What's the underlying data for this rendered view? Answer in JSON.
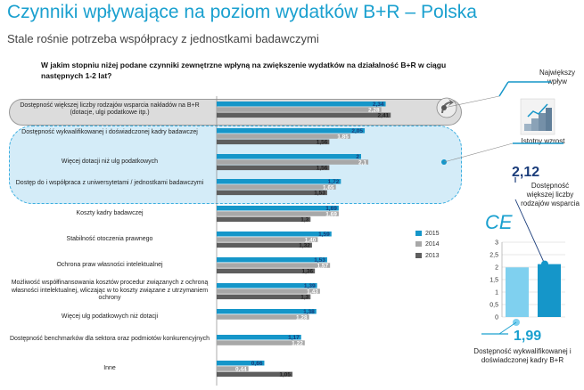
{
  "title": "Czynniki wpływające na poziom wydatków B+R – Polska",
  "subtitle": "Stale rośnie potrzeba współpracy z jednostkami badawczymi",
  "question": "W jakim stopniu niżej podane czynniki zewnętrzne wpłyną na zwiększenie wydatków na działalność B+R w ciągu następnych 1-2 lat?",
  "callouts": {
    "najwiekszy": "Największy wpływ",
    "istotny": "Istotny wzrost"
  },
  "ce_panel": {
    "label": "CE",
    "value_top": "2,12",
    "caption_top": "Dostępność większej liczby rodzajów wsparcia",
    "value_bottom": "1,99",
    "caption_bottom": "Dostępność wykwalifikowanej i doświadczonej kadry B+R"
  },
  "colors": {
    "2015": "#1596c9",
    "2014": "#a8a8a8",
    "2013": "#5e5e5e",
    "accent": "#1aa0cf"
  },
  "chart_data": [
    {
      "type": "bar",
      "orientation": "horizontal",
      "title": "W jakim stopniu niżej podane czynniki zewnętrzne wpłyną na zwiększenie wydatków na działalność B+R w ciągu następnych 1-2 lat?",
      "legend": [
        "2015",
        "2014",
        "2013"
      ],
      "legend_position": "right",
      "categories": [
        "Dostępność większej liczby rodzajów wsparcia nakładów na B+R (dotacje, ulgi podatkowe itp.)",
        "Dostępność wykwalifikowanej i doświadczonej kadry badawczej",
        "Więcej dotacji niż ulg podatkowych",
        "Dostęp do i współpraca z uniwersytetami / jednostkami badawczymi",
        "Koszty kadry badawczej",
        "Stabilność otoczenia prawnego",
        "Ochrona praw własności intelektualnej",
        "Możliwość współfinansowania kosztów procedur związanych z ochroną własności intelektualnej, wliczając w to koszty związane z utrzymaniem ochrony",
        "Więcej ulg podatkowych niż dotacji",
        "Dostępność benchmarków dla sektora oraz podmiotów konkurencyjnych",
        "Inne"
      ],
      "series": [
        {
          "name": "2015",
          "values": [
            2.34,
            2.05,
            2,
            1.72,
            1.69,
            1.59,
            1.53,
            1.39,
            1.38,
            1.17,
            0.66
          ],
          "labels": [
            "2,34",
            "2,05",
            "2",
            "1,72",
            "1,69",
            "1,59",
            "1,53",
            "1,39",
            "1,38",
            "1,17",
            "0,66"
          ]
        },
        {
          "name": "2014",
          "values": [
            2.28,
            1.85,
            2.1,
            1.65,
            1.69,
            1.4,
            1.57,
            1.43,
            1.28,
            1.22,
            0.44
          ],
          "labels": [
            "2,28",
            "1,85",
            "2,1",
            "1,65",
            "1,69",
            "1,40",
            "1,57",
            "1,43",
            "1,28",
            "1,22",
            "0,44"
          ]
        },
        {
          "name": "2013",
          "values": [
            2.41,
            1.56,
            1.56,
            1.53,
            1.3,
            1.32,
            1.36,
            1.3,
            null,
            null,
            1.05
          ],
          "labels": [
            "2,41",
            "1,56",
            "1,56",
            "1,53",
            "1,3",
            "1,32",
            "1,36",
            "1,3",
            "",
            "",
            "1,05"
          ]
        }
      ],
      "xlim": [
        0,
        2.45
      ]
    },
    {
      "type": "bar",
      "title": "CE",
      "categories": [
        "Dostępność wykwalifikowanej i doświadczonej kadry B+R",
        "Dostępność większej liczby rodzajów wsparcia"
      ],
      "values": [
        1.99,
        2.12
      ],
      "ylim": [
        0,
        3
      ],
      "yticks": [
        "0",
        "0,5",
        "1",
        "1,5",
        "2",
        "2,5",
        "3"
      ]
    }
  ]
}
